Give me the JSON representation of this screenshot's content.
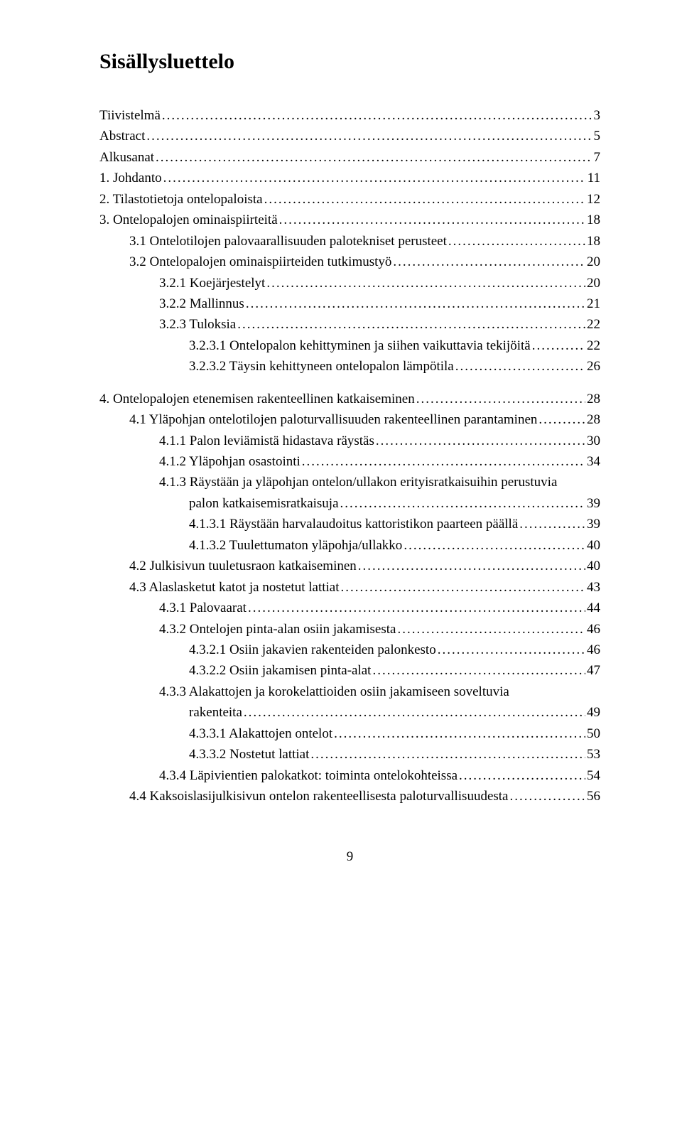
{
  "title": "Sisällysluettelo",
  "page_number": "9",
  "entries": [
    {
      "level": 0,
      "label": "Tiivistelmä",
      "page": "3",
      "gap": false
    },
    {
      "level": 0,
      "label": "Abstract",
      "page": "5",
      "gap": false
    },
    {
      "level": 0,
      "label": "Alkusanat",
      "page": "7",
      "gap": false
    },
    {
      "level": 0,
      "label": "1. Johdanto",
      "page": "11",
      "gap": false
    },
    {
      "level": 0,
      "label": "2. Tilastotietoja ontelopaloista",
      "page": "12",
      "gap": false
    },
    {
      "level": 0,
      "label": "3. Ontelopalojen ominaispiirteitä",
      "page": "18",
      "gap": false
    },
    {
      "level": 1,
      "label": "3.1   Ontelotilojen palovaarallisuuden palotekniset perusteet",
      "page": "18",
      "gap": false
    },
    {
      "level": 1,
      "label": "3.2   Ontelopalojen ominaispiirteiden tutkimustyö",
      "page": "20",
      "gap": false
    },
    {
      "level": 2,
      "label": "3.2.1   Koejärjestelyt",
      "page": "20",
      "gap": false
    },
    {
      "level": 2,
      "label": "3.2.2   Mallinnus",
      "page": "21",
      "gap": false
    },
    {
      "level": 2,
      "label": "3.2.3   Tuloksia",
      "page": "22",
      "gap": false
    },
    {
      "level": 3,
      "label": "3.2.3.1   Ontelopalon kehittyminen ja siihen vaikuttavia tekijöitä",
      "page": "22",
      "gap": false
    },
    {
      "level": 3,
      "label": "3.2.3.2   Täysin kehittyneen ontelopalon lämpötila",
      "page": "26",
      "gap": false
    },
    {
      "level": 0,
      "label": "4. Ontelopalojen etenemisen rakenteellinen katkaiseminen",
      "page": "28",
      "gap": true
    },
    {
      "level": 1,
      "label": "4.1   Yläpohjan ontelotilojen paloturvallisuuden rakenteellinen parantaminen",
      "page": "28",
      "gap": false
    },
    {
      "level": 2,
      "label": "4.1.1   Palon leviämistä hidastava räystäs",
      "page": "30",
      "gap": false
    },
    {
      "level": 2,
      "label": "4.1.2   Yläpohjan osastointi",
      "page": "34",
      "gap": false
    },
    {
      "level": 2,
      "label": "4.1.3   Räystään ja yläpohjan ontelon/ullakon erityisratkaisuihin perustuvia",
      "cont": "palon katkaisemisratkaisuja",
      "page": "39",
      "gap": false
    },
    {
      "level": 3,
      "label": "4.1.3.1   Räystään harvalaudoitus kattoristikon paarteen päällä",
      "page": "39",
      "gap": false
    },
    {
      "level": 3,
      "label": "4.1.3.2   Tuulettumaton yläpohja/ullakko",
      "page": "40",
      "gap": false
    },
    {
      "level": 1,
      "label": "4.2   Julkisivun tuuletusraon katkaiseminen",
      "page": "40",
      "gap": false
    },
    {
      "level": 1,
      "label": "4.3   Alaslasketut katot ja nostetut lattiat",
      "page": "43",
      "gap": false
    },
    {
      "level": 2,
      "label": "4.3.1   Palovaarat",
      "page": "44",
      "gap": false
    },
    {
      "level": 2,
      "label": "4.3.2   Ontelojen pinta-alan osiin jakamisesta",
      "page": "46",
      "gap": false
    },
    {
      "level": 3,
      "label": "4.3.2.1   Osiin jakavien rakenteiden palonkesto",
      "page": "46",
      "gap": false
    },
    {
      "level": 3,
      "label": "4.3.2.2   Osiin jakamisen pinta-alat",
      "page": "47",
      "gap": false
    },
    {
      "level": 2,
      "label": "4.3.3   Alakattojen ja korokelattioiden osiin jakamiseen soveltuvia",
      "cont": "rakenteita",
      "page": "49",
      "gap": false
    },
    {
      "level": 3,
      "label": "4.3.3.1   Alakattojen ontelot",
      "page": "50",
      "gap": false
    },
    {
      "level": 3,
      "label": "4.3.3.2   Nostetut lattiat",
      "page": "53",
      "gap": false
    },
    {
      "level": 2,
      "label": "4.3.4   Läpivientien palokatkot: toiminta ontelokohteissa",
      "page": "54",
      "gap": false
    },
    {
      "level": 1,
      "label": "4.4   Kaksoislasijulkisivun ontelon rakenteellisesta paloturvallisuudesta",
      "page": "56",
      "gap": false
    }
  ]
}
